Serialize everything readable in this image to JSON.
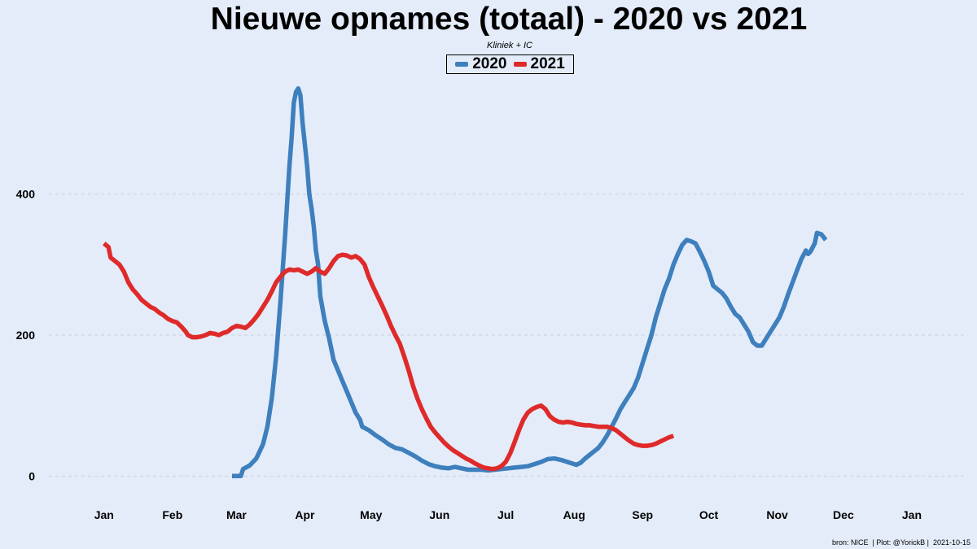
{
  "title": "Nieuwe opnames (totaal) - 2020 vs 2021",
  "subtitle": "Kliniek + IC",
  "caption": "bron: NICE  | Plot: @YorickB |  2021-10-15",
  "chart_data": {
    "type": "line",
    "title": "Nieuwe opnames (totaal) - 2020 vs 2021",
    "subtitle": "Kliniek + IC",
    "xlabel": "",
    "ylabel": "",
    "x_unit": "day of year (Jan 1 = 0)",
    "xlim": [
      -25,
      390
    ],
    "ylim": [
      -40,
      560
    ],
    "grid": "horizontal dashed",
    "legend_position": "top-center",
    "x_ticks": [
      {
        "label": "Jan",
        "x": 0
      },
      {
        "label": "Feb",
        "x": 31
      },
      {
        "label": "Mar",
        "x": 60
      },
      {
        "label": "Apr",
        "x": 91
      },
      {
        "label": "May",
        "x": 121
      },
      {
        "label": "Jun",
        "x": 152
      },
      {
        "label": "Jul",
        "x": 182
      },
      {
        "label": "Aug",
        "x": 213
      },
      {
        "label": "Sep",
        "x": 244
      },
      {
        "label": "Oct",
        "x": 274
      },
      {
        "label": "Nov",
        "x": 305
      },
      {
        "label": "Dec",
        "x": 335
      },
      {
        "label": "Jan",
        "x": 366
      }
    ],
    "y_ticks": [
      {
        "label": "0",
        "y": 0
      },
      {
        "label": "200",
        "y": 200
      },
      {
        "label": "400",
        "y": 400
      }
    ],
    "series": [
      {
        "name": "2020",
        "color": "#3e7fbd",
        "points": [
          [
            58,
            0
          ],
          [
            62,
            0
          ],
          [
            63,
            10
          ],
          [
            66,
            15
          ],
          [
            69,
            25
          ],
          [
            72,
            45
          ],
          [
            74,
            70
          ],
          [
            76,
            110
          ],
          [
            78,
            170
          ],
          [
            80,
            250
          ],
          [
            82,
            340
          ],
          [
            84,
            440
          ],
          [
            85,
            480
          ],
          [
            86,
            530
          ],
          [
            87,
            545
          ],
          [
            88,
            550
          ],
          [
            89,
            540
          ],
          [
            90,
            500
          ],
          [
            91,
            470
          ],
          [
            92,
            440
          ],
          [
            93,
            400
          ],
          [
            94,
            380
          ],
          [
            95,
            355
          ],
          [
            96,
            320
          ],
          [
            97,
            300
          ],
          [
            98,
            255
          ],
          [
            100,
            220
          ],
          [
            102,
            195
          ],
          [
            104,
            165
          ],
          [
            106,
            150
          ],
          [
            108,
            135
          ],
          [
            110,
            120
          ],
          [
            112,
            105
          ],
          [
            114,
            90
          ],
          [
            116,
            80
          ],
          [
            117,
            70
          ],
          [
            120,
            65
          ],
          [
            123,
            58
          ],
          [
            126,
            52
          ],
          [
            129,
            45
          ],
          [
            132,
            40
          ],
          [
            135,
            38
          ],
          [
            138,
            33
          ],
          [
            141,
            28
          ],
          [
            144,
            22
          ],
          [
            147,
            17
          ],
          [
            150,
            14
          ],
          [
            153,
            12
          ],
          [
            156,
            11
          ],
          [
            159,
            13
          ],
          [
            162,
            11
          ],
          [
            165,
            9
          ],
          [
            168,
            9
          ],
          [
            171,
            9
          ],
          [
            174,
            8
          ],
          [
            177,
            9
          ],
          [
            180,
            10
          ],
          [
            183,
            11
          ],
          [
            186,
            12
          ],
          [
            189,
            13
          ],
          [
            192,
            14
          ],
          [
            195,
            17
          ],
          [
            198,
            20
          ],
          [
            201,
            24
          ],
          [
            204,
            25
          ],
          [
            207,
            23
          ],
          [
            210,
            20
          ],
          [
            212,
            18
          ],
          [
            214,
            16
          ],
          [
            216,
            19
          ],
          [
            218,
            25
          ],
          [
            220,
            30
          ],
          [
            222,
            35
          ],
          [
            224,
            40
          ],
          [
            226,
            48
          ],
          [
            228,
            58
          ],
          [
            230,
            70
          ],
          [
            232,
            82
          ],
          [
            234,
            95
          ],
          [
            236,
            105
          ],
          [
            238,
            115
          ],
          [
            240,
            125
          ],
          [
            242,
            140
          ],
          [
            244,
            160
          ],
          [
            246,
            180
          ],
          [
            248,
            200
          ],
          [
            250,
            225
          ],
          [
            252,
            245
          ],
          [
            254,
            265
          ],
          [
            256,
            280
          ],
          [
            258,
            300
          ],
          [
            260,
            315
          ],
          [
            262,
            328
          ],
          [
            264,
            335
          ],
          [
            266,
            333
          ],
          [
            268,
            330
          ],
          [
            270,
            318
          ],
          [
            272,
            305
          ],
          [
            274,
            290
          ],
          [
            276,
            270
          ],
          [
            278,
            265
          ],
          [
            280,
            260
          ],
          [
            282,
            252
          ],
          [
            284,
            240
          ],
          [
            286,
            230
          ],
          [
            288,
            225
          ],
          [
            290,
            215
          ],
          [
            292,
            205
          ],
          [
            294,
            190
          ],
          [
            296,
            185
          ],
          [
            298,
            185
          ],
          [
            300,
            195
          ],
          [
            302,
            205
          ],
          [
            304,
            215
          ],
          [
            306,
            225
          ],
          [
            308,
            240
          ],
          [
            310,
            258
          ],
          [
            312,
            275
          ],
          [
            314,
            292
          ],
          [
            316,
            308
          ],
          [
            318,
            320
          ],
          [
            319,
            315
          ],
          [
            320,
            318
          ],
          [
            322,
            330
          ],
          [
            323,
            345
          ],
          [
            325,
            343
          ],
          [
            327,
            335
          ]
        ]
      },
      {
        "name": "2021",
        "color": "#df2a2a",
        "points": [
          [
            0,
            330
          ],
          [
            2,
            325
          ],
          [
            3,
            310
          ],
          [
            5,
            305
          ],
          [
            7,
            300
          ],
          [
            9,
            290
          ],
          [
            11,
            275
          ],
          [
            13,
            265
          ],
          [
            15,
            258
          ],
          [
            17,
            250
          ],
          [
            19,
            245
          ],
          [
            21,
            240
          ],
          [
            23,
            237
          ],
          [
            25,
            232
          ],
          [
            27,
            228
          ],
          [
            29,
            223
          ],
          [
            31,
            220
          ],
          [
            33,
            218
          ],
          [
            35,
            212
          ],
          [
            37,
            205
          ],
          [
            38,
            200
          ],
          [
            40,
            197
          ],
          [
            42,
            197
          ],
          [
            44,
            198
          ],
          [
            46,
            200
          ],
          [
            48,
            203
          ],
          [
            50,
            202
          ],
          [
            52,
            200
          ],
          [
            54,
            203
          ],
          [
            56,
            205
          ],
          [
            58,
            210
          ],
          [
            60,
            213
          ],
          [
            62,
            212
          ],
          [
            64,
            210
          ],
          [
            66,
            215
          ],
          [
            68,
            222
          ],
          [
            70,
            230
          ],
          [
            72,
            240
          ],
          [
            74,
            250
          ],
          [
            76,
            262
          ],
          [
            78,
            275
          ],
          [
            80,
            283
          ],
          [
            82,
            290
          ],
          [
            84,
            293
          ],
          [
            86,
            292
          ],
          [
            88,
            293
          ],
          [
            90,
            290
          ],
          [
            92,
            287
          ],
          [
            94,
            290
          ],
          [
            96,
            295
          ],
          [
            98,
            290
          ],
          [
            100,
            287
          ],
          [
            102,
            295
          ],
          [
            104,
            305
          ],
          [
            106,
            312
          ],
          [
            108,
            314
          ],
          [
            110,
            313
          ],
          [
            112,
            310
          ],
          [
            114,
            312
          ],
          [
            116,
            308
          ],
          [
            118,
            300
          ],
          [
            120,
            282
          ],
          [
            122,
            268
          ],
          [
            124,
            255
          ],
          [
            126,
            242
          ],
          [
            128,
            228
          ],
          [
            130,
            213
          ],
          [
            132,
            200
          ],
          [
            134,
            188
          ],
          [
            136,
            170
          ],
          [
            138,
            150
          ],
          [
            140,
            128
          ],
          [
            142,
            110
          ],
          [
            144,
            95
          ],
          [
            146,
            82
          ],
          [
            148,
            70
          ],
          [
            150,
            62
          ],
          [
            152,
            55
          ],
          [
            154,
            48
          ],
          [
            156,
            42
          ],
          [
            158,
            37
          ],
          [
            160,
            33
          ],
          [
            162,
            29
          ],
          [
            164,
            25
          ],
          [
            166,
            22
          ],
          [
            168,
            18
          ],
          [
            170,
            15
          ],
          [
            172,
            12
          ],
          [
            174,
            11
          ],
          [
            176,
            10
          ],
          [
            178,
            11
          ],
          [
            180,
            14
          ],
          [
            182,
            20
          ],
          [
            184,
            32
          ],
          [
            186,
            48
          ],
          [
            188,
            65
          ],
          [
            190,
            80
          ],
          [
            192,
            90
          ],
          [
            194,
            95
          ],
          [
            196,
            98
          ],
          [
            198,
            100
          ],
          [
            200,
            95
          ],
          [
            202,
            85
          ],
          [
            204,
            80
          ],
          [
            206,
            77
          ],
          [
            208,
            76
          ],
          [
            210,
            77
          ],
          [
            212,
            76
          ],
          [
            214,
            74
          ],
          [
            216,
            73
          ],
          [
            218,
            72
          ],
          [
            220,
            72
          ],
          [
            222,
            71
          ],
          [
            224,
            70
          ],
          [
            226,
            70
          ],
          [
            228,
            70
          ],
          [
            230,
            68
          ],
          [
            232,
            65
          ],
          [
            234,
            60
          ],
          [
            236,
            55
          ],
          [
            238,
            50
          ],
          [
            240,
            46
          ],
          [
            242,
            44
          ],
          [
            244,
            43
          ],
          [
            246,
            43
          ],
          [
            248,
            44
          ],
          [
            250,
            46
          ],
          [
            252,
            49
          ],
          [
            254,
            52
          ],
          [
            256,
            55
          ],
          [
            258,
            57
          ]
        ]
      }
    ]
  }
}
